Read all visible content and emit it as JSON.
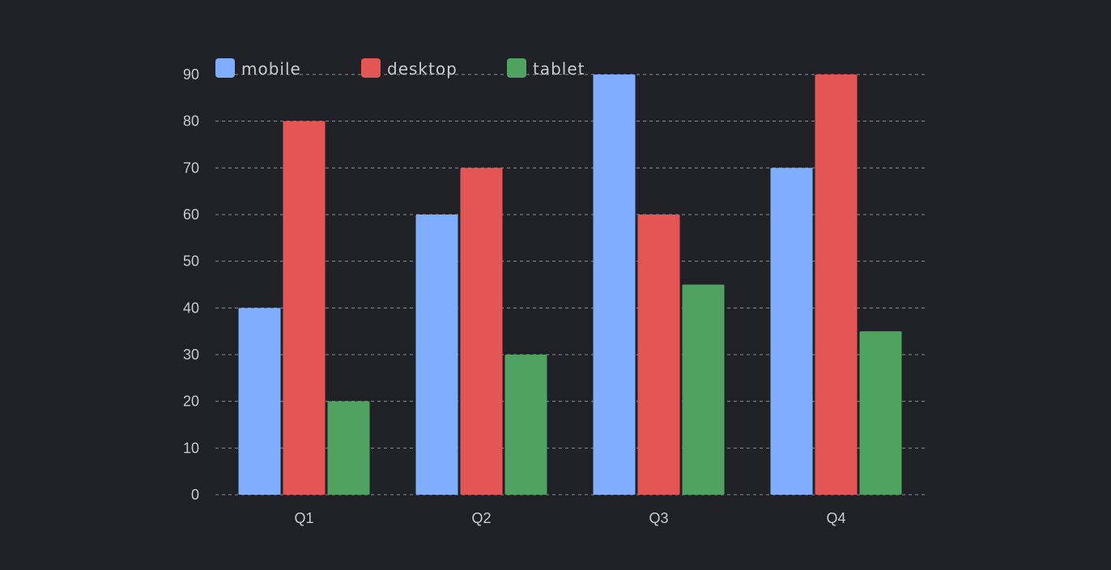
{
  "chart_data": {
    "type": "bar",
    "categories": [
      "Q1",
      "Q2",
      "Q3",
      "Q4"
    ],
    "series": [
      {
        "name": "mobile",
        "values": [
          40,
          60,
          90,
          70
        ],
        "color": "#7fadff"
      },
      {
        "name": "desktop",
        "values": [
          80,
          70,
          60,
          90
        ],
        "color": "#e45656"
      },
      {
        "name": "tablet",
        "values": [
          20,
          30,
          45,
          35
        ],
        "color": "#4fa25f"
      }
    ],
    "ylim": [
      0,
      90
    ],
    "yticks": [
      "0",
      "10",
      "20",
      "30",
      "40",
      "50",
      "60",
      "70",
      "80",
      "90"
    ],
    "grid": true,
    "legend": "top-left"
  }
}
